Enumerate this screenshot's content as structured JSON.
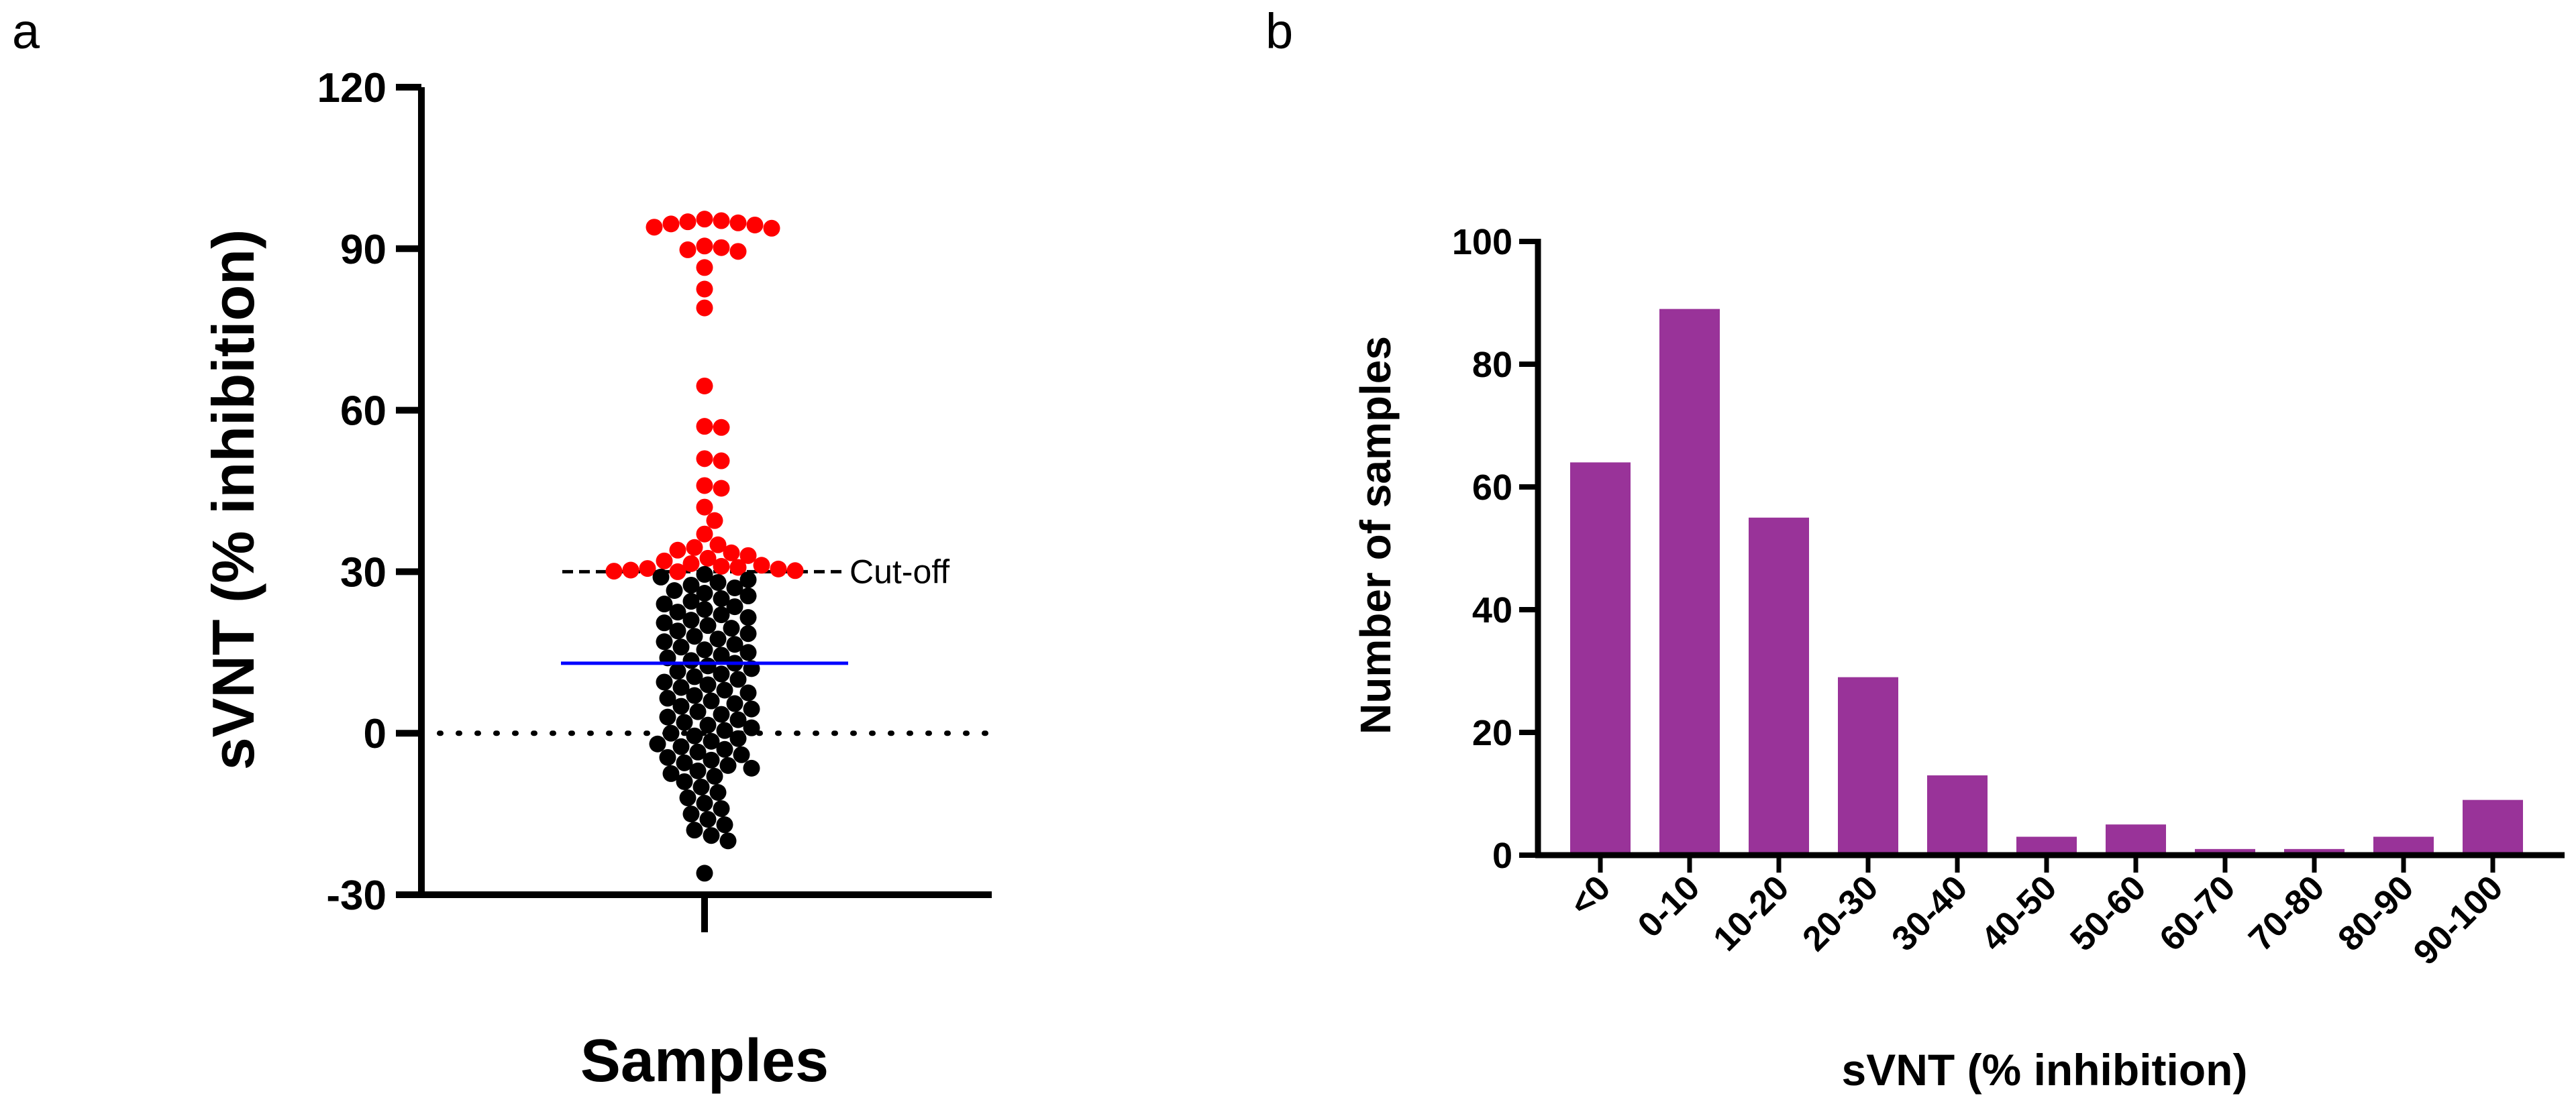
{
  "panels": {
    "a": "a",
    "b": "b"
  },
  "chart_data": [
    {
      "type": "scatter",
      "panel": "a",
      "title": "",
      "xlabel": "Samples",
      "ylabel": "sVNT (% inhibition)",
      "ylim": [
        -30,
        120
      ],
      "yticks": [
        -30,
        0,
        30,
        60,
        90,
        120
      ],
      "cutoff": {
        "value": 30,
        "label": "Cut-off"
      },
      "mean": 13,
      "zero_line": 0,
      "colors": {
        "above_cutoff": "#ff0000",
        "below_cutoff": "#000000",
        "mean_line": "#0000ff"
      },
      "values": [
        95.5,
        95.2,
        95.0,
        94.8,
        94.6,
        94.4,
        94.0,
        93.8,
        90.5,
        90.2,
        89.8,
        89.5,
        86.5,
        82.5,
        79.0,
        64.5,
        57.0,
        56.8,
        51.0,
        50.6,
        46.0,
        45.5,
        42.0,
        39.5,
        37.0,
        35.0,
        34.5,
        34.0,
        33.5,
        33.0,
        32.5,
        32.0,
        31.5,
        31.2,
        31.0,
        30.8,
        30.6,
        30.5,
        30.3,
        30.2,
        30.1,
        30.0,
        29.5,
        29.0,
        28.5,
        28.0,
        27.5,
        27.0,
        26.5,
        26.0,
        25.5,
        25.0,
        24.5,
        24.0,
        23.5,
        23.0,
        22.5,
        22.0,
        21.5,
        21.0,
        20.5,
        20.0,
        19.5,
        19.0,
        18.5,
        18.0,
        17.5,
        17.0,
        16.5,
        16.0,
        15.5,
        15.0,
        14.5,
        14.0,
        13.5,
        13.0,
        12.5,
        12.0,
        11.5,
        11.0,
        10.5,
        10.0,
        9.5,
        9.0,
        8.5,
        8.0,
        7.5,
        7.0,
        6.5,
        6.0,
        5.5,
        5.0,
        4.5,
        4.0,
        3.5,
        3.0,
        2.5,
        2.0,
        1.5,
        1.0,
        0.5,
        0.0,
        -0.5,
        -1.0,
        -1.5,
        -2.0,
        -2.5,
        -3.0,
        -3.5,
        -4.0,
        -4.5,
        -5.0,
        -5.5,
        -6.0,
        -6.5,
        -7.0,
        -7.5,
        -8.0,
        -9.0,
        -10.0,
        -11.0,
        -12.0,
        -13.0,
        -14.0,
        -15.0,
        -16.0,
        -17.0,
        -18.0,
        -19.0,
        -20.0,
        -26.0
      ]
    },
    {
      "type": "bar",
      "panel": "b",
      "title": "",
      "xlabel": "sVNT (% inhibition)",
      "ylabel": "Number of samples",
      "ylim": [
        0,
        100
      ],
      "yticks": [
        0,
        20,
        40,
        60,
        80,
        100
      ],
      "color": "#993399",
      "categories": [
        "<0",
        "0-10",
        "10-20",
        "20-30",
        "30-40",
        "40-50",
        "50-60",
        "60-70",
        "70-80",
        "80-90",
        "90-100"
      ],
      "values": [
        64,
        89,
        55,
        29,
        13,
        3,
        5,
        1,
        1,
        3,
        9
      ]
    }
  ]
}
